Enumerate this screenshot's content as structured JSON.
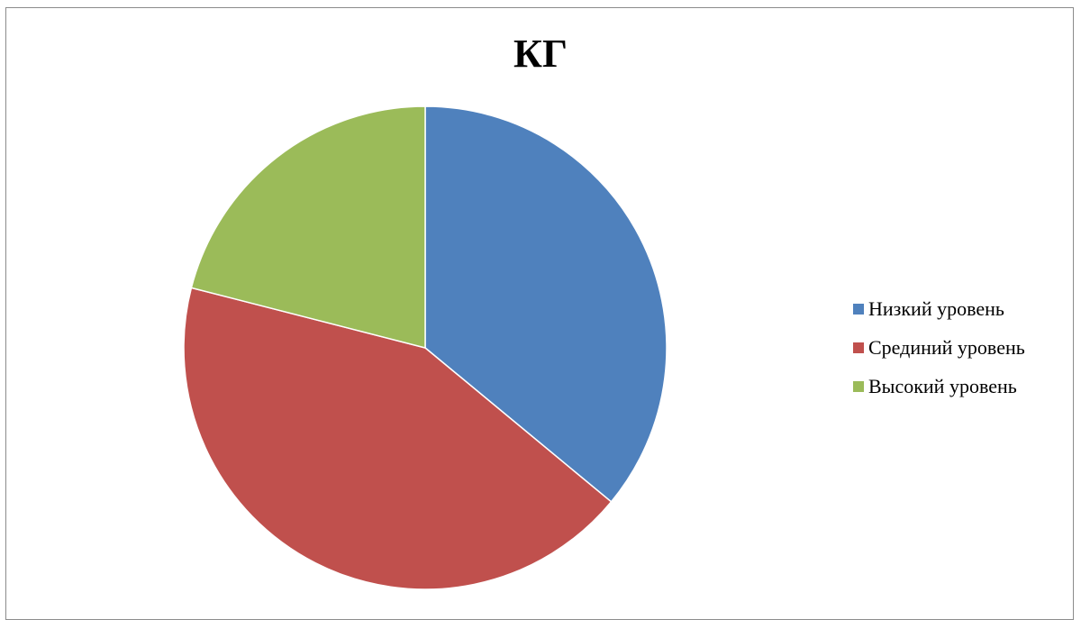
{
  "chart_data": {
    "type": "pie",
    "title": "КГ",
    "categories": [
      "Низкий уровень",
      "Срединий уровень",
      "Высокий уровень"
    ],
    "values": [
      36,
      43,
      21
    ],
    "colors": [
      "#4f81bd",
      "#c0504d",
      "#9bbb59"
    ],
    "start_angle_deg": 0,
    "direction": "clockwise",
    "legend_position": "right",
    "legend": [
      {
        "label": "Низкий уровень",
        "color": "#4f81bd"
      },
      {
        "label": "Срединий уровень",
        "color": "#c0504d"
      },
      {
        "label": "Высокий уровень",
        "color": "#9bbb59"
      }
    ]
  }
}
